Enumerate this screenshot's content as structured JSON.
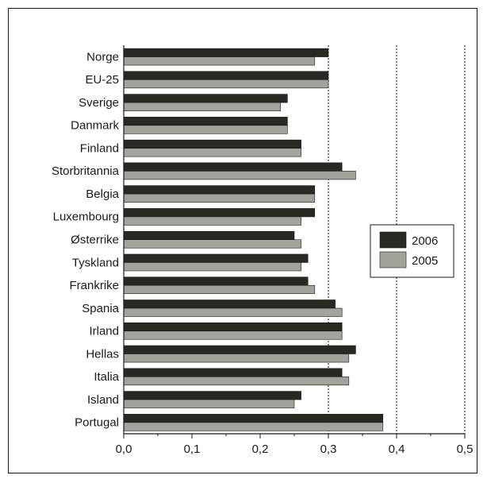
{
  "chart_data": {
    "type": "bar",
    "orientation": "horizontal",
    "categories": [
      "Norge",
      "EU-25",
      "Sverige",
      "Danmark",
      "Finland",
      "Storbritannia",
      "Belgia",
      "Luxembourg",
      "Østerrike",
      "Tyskland",
      "Frankrike",
      "Spania",
      "Irland",
      "Hellas",
      "Italia",
      "Island",
      "Portugal"
    ],
    "series": [
      {
        "name": "2006",
        "color": "#2b2723",
        "values": [
          0.3,
          0.3,
          0.24,
          0.24,
          0.26,
          0.32,
          0.28,
          0.28,
          0.25,
          0.27,
          0.27,
          0.31,
          0.32,
          0.34,
          0.32,
          0.26,
          0.38
        ]
      },
      {
        "name": "2005",
        "color": "#a3a39b",
        "values": [
          0.28,
          0.3,
          0.23,
          0.24,
          0.26,
          0.34,
          0.28,
          0.26,
          0.26,
          0.26,
          0.28,
          0.32,
          0.32,
          0.33,
          0.33,
          0.25,
          0.38
        ]
      }
    ],
    "xlim": [
      0,
      0.5
    ],
    "xticks": [
      0,
      0.1,
      0.2,
      0.3,
      0.4,
      0.5
    ],
    "xtick_labels": [
      "0,0",
      "0,1",
      "0,2",
      "0,3",
      "0,4",
      "0,5"
    ],
    "grid": "vertical dotted lines at 0,3 0,4 0,5",
    "legend_position": "right",
    "title": "",
    "xlabel": "",
    "ylabel": ""
  }
}
